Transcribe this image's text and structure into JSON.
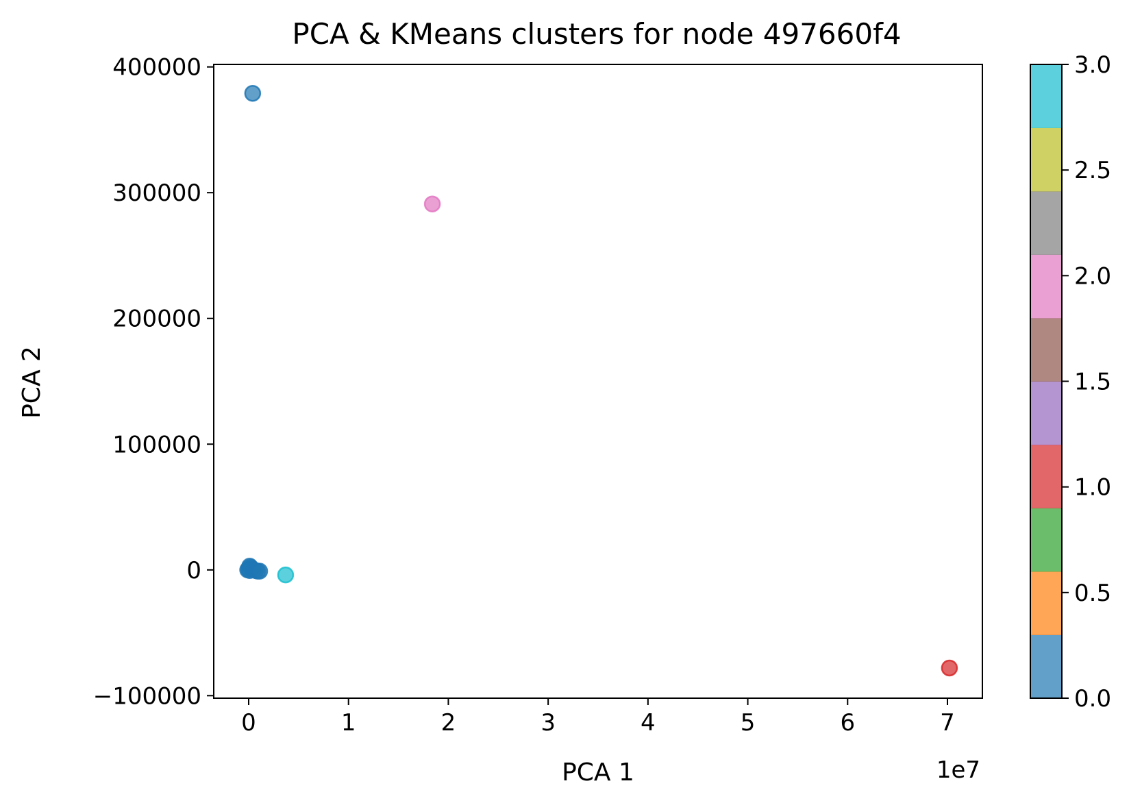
{
  "chart_data": {
    "type": "scatter",
    "title": "PCA & KMeans clusters for node 497660f4",
    "xlabel": "PCA 1",
    "ylabel": "PCA 2",
    "x_offset_text": "1e7",
    "xlim": [
      -0.35,
      7.35
    ],
    "ylim": [
      -102000,
      402000
    ],
    "x_ticks": [
      0,
      1,
      2,
      3,
      4,
      5,
      6,
      7
    ],
    "x_tick_labels": [
      "0",
      "1",
      "2",
      "3",
      "4",
      "5",
      "6",
      "7"
    ],
    "y_ticks": [
      -100000,
      0,
      100000,
      200000,
      300000,
      400000
    ],
    "y_tick_labels": [
      "−100000",
      "0",
      "100000",
      "200000",
      "300000",
      "400000"
    ],
    "grid": false,
    "points": [
      {
        "x": 0.04,
        "y": 379000,
        "cluster": 0
      },
      {
        "x": 1.84,
        "y": 291000,
        "cluster": 2
      },
      {
        "x": 0.37,
        "y": -4000,
        "cluster": 3
      },
      {
        "x": 7.02,
        "y": -78000,
        "cluster": 1
      },
      {
        "x": 0.0,
        "y": 1000,
        "cluster": 0
      },
      {
        "x": 0.01,
        "y": 3000,
        "cluster": 0
      },
      {
        "x": -0.01,
        "y": 0,
        "cluster": 0
      },
      {
        "x": 0.02,
        "y": 2000,
        "cluster": 0
      },
      {
        "x": 0.03,
        "y": 1000,
        "cluster": 0
      },
      {
        "x": 0.01,
        "y": -500,
        "cluster": 0
      },
      {
        "x": 0.05,
        "y": 0,
        "cluster": 0
      },
      {
        "x": 0.07,
        "y": -500,
        "cluster": 0
      },
      {
        "x": 0.09,
        "y": -1000,
        "cluster": 0
      },
      {
        "x": 0.11,
        "y": -1000,
        "cluster": 0
      }
    ],
    "colorbar": {
      "min": 0.0,
      "max": 3.0,
      "ticks": [
        0.0,
        0.5,
        1.0,
        1.5,
        2.0,
        2.5,
        3.0
      ],
      "tick_labels": [
        "0.0",
        "0.5",
        "1.0",
        "1.5",
        "2.0",
        "2.5",
        "3.0"
      ],
      "colors": [
        "#1f77b4",
        "#ff7f0e",
        "#2ca02c",
        "#d62728",
        "#9467bd",
        "#8c564b",
        "#e377c2",
        "#7f7f7f",
        "#bcbd22",
        "#17becf"
      ],
      "alpha": 0.7
    },
    "cluster_colors": {
      "0": "#1f77b4",
      "1": "#d62728",
      "2": "#e377c2",
      "3": "#17becf"
    }
  }
}
